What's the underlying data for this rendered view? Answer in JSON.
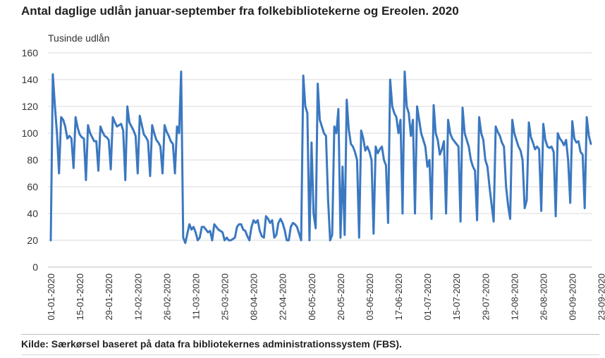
{
  "chart_data": {
    "type": "line",
    "title": "Antal daglige udlån januar-september fra folkebibliotekerne og Ereolen. 2020",
    "ylabel": "Tusinde udlån",
    "xlabel": "",
    "ylim": [
      0,
      160
    ],
    "yticks": [
      0,
      20,
      40,
      60,
      80,
      100,
      120,
      140,
      160
    ],
    "x_tick_labels": [
      "01-01-2020",
      "15-01-2020",
      "29-01-2020",
      "12-02-2020",
      "26-02-2020",
      "11-03-2020",
      "25-03-2020",
      "08-04-2020",
      "22-04-2020",
      "06-05-2020",
      "20-05-2020",
      "03-06-2020",
      "17-06-2020",
      "01-07-2020",
      "15-07-2020",
      "29-07-2020",
      "12-08-2020",
      "26-08-2020",
      "09-09-2020",
      "23-09-2020"
    ],
    "grid": true,
    "legend": "none",
    "line_color": "#3b78c0",
    "series": [
      {
        "values": [
          20,
          144,
          120,
          100,
          70,
          112,
          110,
          105,
          96,
          98,
          96,
          74,
          112,
          104,
          99,
          97,
          96,
          65,
          106,
          100,
          97,
          94,
          94,
          72,
          105,
          101,
          98,
          97,
          95,
          73,
          112,
          108,
          105,
          106,
          107,
          102,
          65,
          120,
          108,
          105,
          102,
          98,
          70,
          113,
          106,
          99,
          97,
          94,
          68,
          106,
          100,
          95,
          93,
          90,
          70,
          106,
          101,
          98,
          94,
          92,
          70,
          105,
          100,
          146,
          22,
          18,
          25,
          32,
          28,
          30,
          26,
          20,
          22,
          30,
          30,
          28,
          26,
          27,
          20,
          32,
          30,
          28,
          27,
          26,
          20,
          22,
          20,
          20,
          21,
          22,
          30,
          32,
          32,
          28,
          27,
          23,
          20,
          30,
          35,
          33,
          35,
          27,
          23,
          22,
          38,
          36,
          33,
          35,
          22,
          24,
          33,
          36,
          33,
          28,
          20,
          20,
          30,
          33,
          32,
          30,
          25,
          20,
          143,
          120,
          115,
          20,
          93,
          40,
          29,
          137,
          110,
          105,
          100,
          98,
          50,
          20,
          24,
          105,
          100,
          118,
          22,
          75,
          24,
          125,
          103,
          92,
          90,
          86,
          80,
          22,
          102,
          96,
          87,
          90,
          86,
          80,
          25,
          90,
          85,
          88,
          90,
          80,
          76,
          33,
          140,
          120,
          115,
          112,
          100,
          110,
          40,
          146,
          120,
          115,
          98,
          110,
          40,
          120,
          110,
          100,
          95,
          90,
          75,
          80,
          36,
          121,
          100,
          95,
          84,
          88,
          94,
          40,
          110,
          100,
          96,
          94,
          92,
          90,
          34,
          119,
          100,
          95,
          90,
          80,
          75,
          72,
          35,
          112,
          100,
          95,
          80,
          75,
          60,
          47,
          34,
          105,
          101,
          98,
          93,
          90,
          60,
          46,
          36,
          110,
          100,
          95,
          90,
          87,
          80,
          44,
          50,
          108,
          97,
          93,
          88,
          90,
          88,
          42,
          107,
          95,
          90,
          89,
          90,
          86,
          38,
          100,
          96,
          94,
          91,
          95,
          80,
          48,
          109,
          96,
          93,
          94,
          86,
          84,
          44,
          112,
          98,
          92
        ]
      }
    ]
  }
}
